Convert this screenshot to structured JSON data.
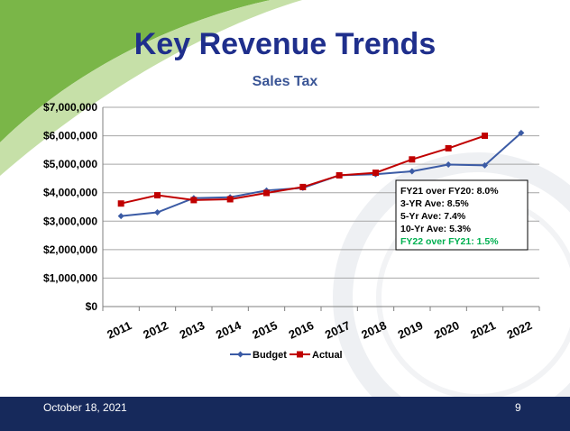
{
  "slide": {
    "title": "Key Revenue Trends",
    "subtitle": "Sales Tax",
    "footer_date": "October 18, 2021",
    "page_number": "9"
  },
  "colors": {
    "title": "#1f2f8c",
    "subtitle": "#3a5596",
    "footer_bg": "#16295b",
    "budget": "#3b5ba5",
    "actual": "#c00000",
    "highlight_text": "#00b050"
  },
  "chart_data": {
    "type": "line",
    "title": "Sales Tax",
    "xlabel": "",
    "ylabel": "",
    "categories": [
      "2011",
      "2012",
      "2013",
      "2014",
      "2015",
      "2016",
      "2017",
      "2018",
      "2019",
      "2020",
      "2021",
      "2022"
    ],
    "y_ticks": [
      "$0",
      "$1,000,000",
      "$2,000,000",
      "$3,000,000",
      "$4,000,000",
      "$5,000,000",
      "$6,000,000",
      "$7,000,000"
    ],
    "ylim": [
      0,
      7000000
    ],
    "grid": true,
    "legend_position": "bottom",
    "series": [
      {
        "name": "Budget",
        "marker": "diamond",
        "values": [
          3180000,
          3310000,
          3810000,
          3840000,
          4080000,
          4170000,
          4610000,
          4650000,
          4750000,
          4990000,
          4960000,
          6100000
        ]
      },
      {
        "name": "Actual",
        "marker": "square",
        "values": [
          3620000,
          3910000,
          3740000,
          3770000,
          3990000,
          4200000,
          4610000,
          4700000,
          5170000,
          5560000,
          6000000,
          null
        ]
      }
    ],
    "annotation": {
      "lines": [
        "FY21 over FY20: 8.0%",
        "3-YR Ave: 8.5%",
        "5-Yr Ave: 7.4%",
        "10-Yr Ave:  5.3%"
      ],
      "highlight_line": "FY22 over FY21: 1.5%"
    }
  }
}
